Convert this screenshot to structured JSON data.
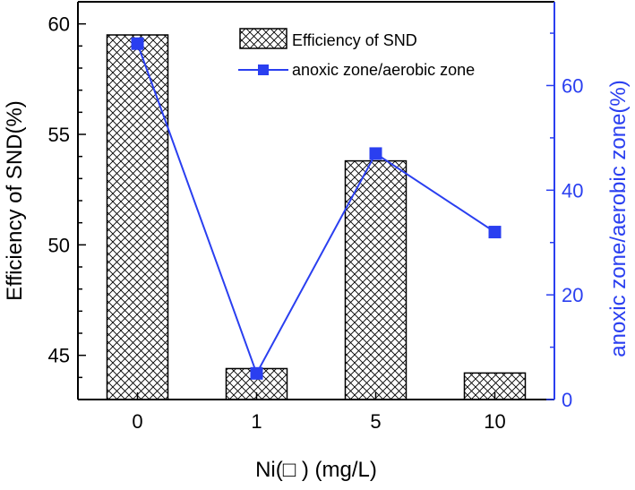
{
  "chart_data": {
    "type": "bar",
    "categories": [
      "0",
      "1",
      "5",
      "10"
    ],
    "xlabel": "Ni(□ ) (mg/L)",
    "ylabel": "Efficiency of SND(%)",
    "y2label": "anoxic zone/aerobic zone(%)",
    "ylim": [
      43,
      61
    ],
    "y2lim": [
      0,
      76
    ],
    "yticks": [
      "45",
      "50",
      "55",
      "60"
    ],
    "y2ticks": [
      "0",
      "20",
      "40",
      "60"
    ],
    "series": [
      {
        "name": "Efficiency of SND",
        "type": "bar",
        "axis": "left",
        "pattern": "crosshatch",
        "values": [
          59.5,
          44.4,
          53.8,
          44.2
        ]
      },
      {
        "name": "anoxic zone/aerobic zone",
        "type": "line",
        "axis": "right",
        "marker": "square",
        "color": "#2a3ff0",
        "values": [
          68,
          5,
          47,
          32
        ]
      }
    ],
    "legend_position": "top-right",
    "grid": false
  }
}
